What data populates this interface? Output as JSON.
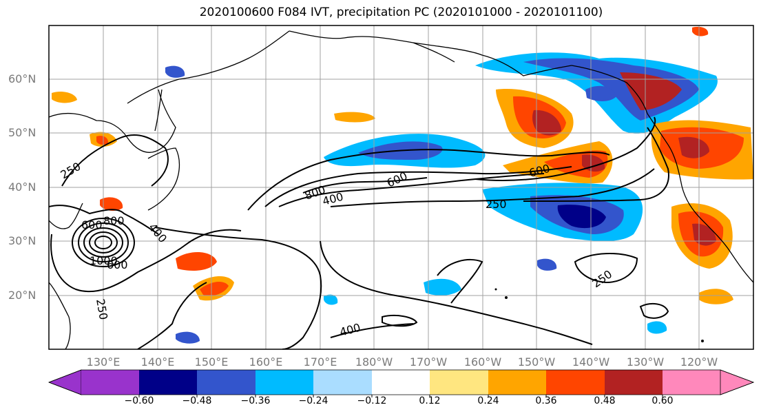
{
  "title": "2020100600 F084 IVT, precipitation PC (2020101000 - 2020101100)",
  "lat_labels": [
    "60°N",
    "50°N",
    "40°N",
    "30°N",
    "20°N"
  ],
  "lon_labels": [
    "130°E",
    "140°E",
    "150°E",
    "160°E",
    "170°E",
    "180°W",
    "170°W",
    "160°W",
    "150°W",
    "140°W",
    "130°W",
    "120°W"
  ],
  "colorbar": {
    "ticks": [
      "−0.60",
      "−0.48",
      "−0.36",
      "−0.24",
      "−0.12",
      "0.12",
      "0.24",
      "0.36",
      "0.48",
      "0.60"
    ],
    "colors": [
      "#9933cc",
      "#000088",
      "#3355cc",
      "#00bbff",
      "#aaddff",
      "#ffffff",
      "#ffe680",
      "#ffa500",
      "#ff4500",
      "#b22222",
      "#ff88bb"
    ]
  },
  "contour_labels": [
    "250",
    "600",
    "800",
    "1000",
    "400",
    "800",
    "400",
    "600",
    "600",
    "250",
    "250",
    "400",
    "250",
    "600"
  ]
}
